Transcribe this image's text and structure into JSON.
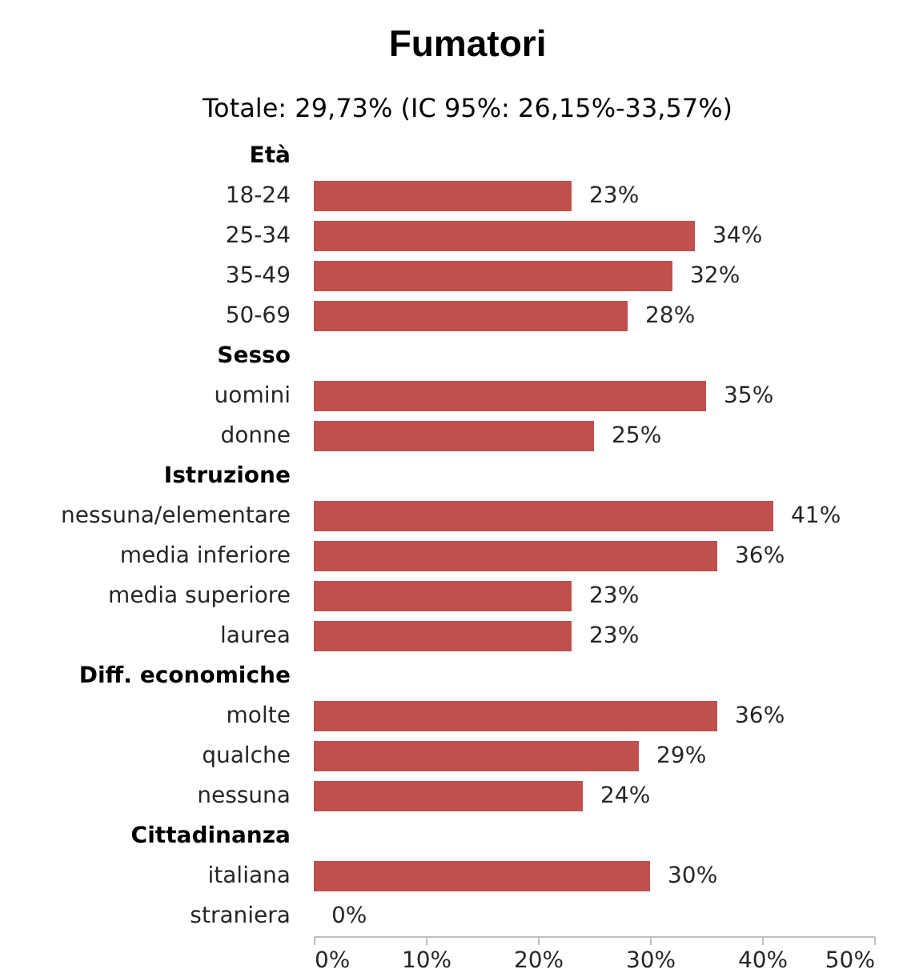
{
  "chart_data": {
    "type": "bar",
    "orientation": "horizontal",
    "title": "Fumatori",
    "subtitle": "Totale: 29,73% (IC 95%: 26,15%-33,57%)",
    "categories": [
      "Età",
      "18-24",
      "25-34",
      "35-49",
      "50-69",
      "Sesso",
      "uomini",
      "donne",
      "Istruzione",
      "nessuna/elementare",
      "media inferiore",
      "media superiore",
      "laurea",
      "Diff. economiche",
      "molte",
      "qualche",
      "nessuna",
      "Cittadinanza",
      "italiana",
      "straniera"
    ],
    "values": [
      null,
      23,
      34,
      32,
      28,
      null,
      35,
      25,
      null,
      41,
      36,
      23,
      23,
      null,
      36,
      29,
      24,
      null,
      30,
      0
    ],
    "value_labels": [
      null,
      "23%",
      "34%",
      "32%",
      "28%",
      null,
      "35%",
      "25%",
      null,
      "41%",
      "36%",
      "23%",
      "23%",
      null,
      "36%",
      "29%",
      "24%",
      null,
      "30%",
      "0%"
    ],
    "color": "#c0504d",
    "xlim": [
      0,
      50
    ],
    "xticks": [
      {
        "value": 0,
        "label": "0%"
      },
      {
        "value": 10,
        "label": "10%"
      },
      {
        "value": 20,
        "label": "20%"
      },
      {
        "value": 30,
        "label": "30%"
      },
      {
        "value": 40,
        "label": "40%"
      },
      {
        "value": 50,
        "label": "50%"
      }
    ]
  }
}
